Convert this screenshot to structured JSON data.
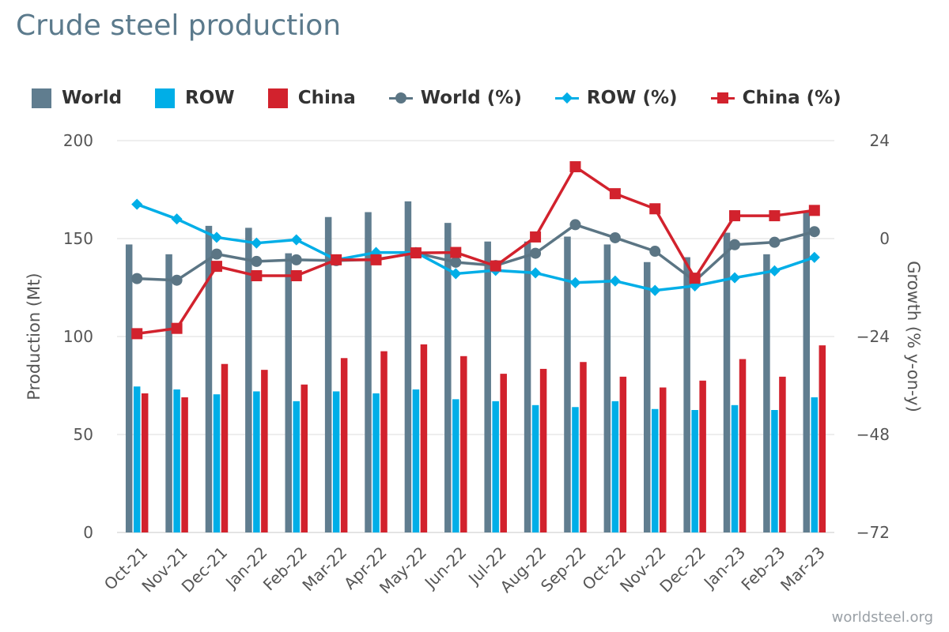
{
  "page": {
    "title": "Crude steel production",
    "watermark": "worldsteel.org"
  },
  "colors": {
    "world": "#607d8f",
    "row": "#00aee7",
    "china": "#d2222d",
    "world_line": "#5b7584",
    "grid": "#dcdcdc"
  },
  "legend": [
    {
      "label": "World",
      "kind": "box",
      "color": "#607d8f"
    },
    {
      "label": "ROW",
      "kind": "box",
      "color": "#00aee7"
    },
    {
      "label": "China",
      "kind": "box",
      "color": "#d2222d"
    },
    {
      "label": "World (%)",
      "kind": "line",
      "marker": "circle",
      "color": "#5b7584"
    },
    {
      "label": "ROW (%)",
      "kind": "line",
      "marker": "diamond",
      "color": "#00aee7"
    },
    {
      "label": "China (%)",
      "kind": "line",
      "marker": "square",
      "color": "#d2222d"
    }
  ],
  "chart_data": {
    "type": "bar",
    "title": "Crude steel production",
    "ylabel": "Production (Mt)",
    "y2label": "Growth (% y-on-y)",
    "ylim": [
      0,
      200
    ],
    "y2lim": [
      -72,
      24
    ],
    "yticks": [
      0,
      50,
      100,
      150,
      200
    ],
    "y2ticks": [
      "−72",
      "−48",
      "−24",
      "0",
      "24"
    ],
    "grid": true,
    "legend_position": "top",
    "categories": [
      "Oct-21",
      "Nov-21",
      "Dec-21",
      "Jan-22",
      "Feb-22",
      "Mar-22",
      "Apr-22",
      "May-22",
      "Jun-22",
      "Jul-22",
      "Aug-22",
      "Sep-22",
      "Oct-22",
      "Nov-22",
      "Dec-22",
      "Jan-23",
      "Feb-23",
      "Mar-23"
    ],
    "series": [
      {
        "name": "World",
        "type": "bar",
        "axis": "left",
        "values": [
          147,
          142,
          156.5,
          155.5,
          142.5,
          161,
          163.5,
          169,
          158,
          148.5,
          148.5,
          151,
          147,
          138,
          140.5,
          153,
          142,
          163.5
        ]
      },
      {
        "name": "ROW",
        "type": "bar",
        "axis": "left",
        "values": [
          74.5,
          73,
          70.5,
          72,
          67,
          72,
          71,
          73,
          68,
          67,
          65,
          64,
          67,
          63,
          62.5,
          65,
          62.5,
          69
        ]
      },
      {
        "name": "China",
        "type": "bar",
        "axis": "left",
        "values": [
          71,
          69,
          86,
          83,
          75.5,
          89,
          92.5,
          96,
          90,
          81,
          83.5,
          87,
          79.5,
          74,
          77.5,
          88.5,
          79.5,
          95.5
        ]
      },
      {
        "name": "World (%)",
        "type": "line",
        "axis": "right",
        "values": [
          -9.8,
          -10.2,
          -3.8,
          -5.6,
          -5.2,
          -5.4,
          -5.1,
          -3.5,
          -5.8,
          -6.6,
          -3.6,
          3.4,
          0.2,
          -3.1,
          -10.4,
          -1.5,
          -0.9,
          1.7
        ]
      },
      {
        "name": "ROW (%)",
        "type": "line",
        "axis": "right",
        "values": [
          8.4,
          4.8,
          0.3,
          -1.1,
          -0.3,
          -5.2,
          -3.4,
          -3.4,
          -8.6,
          -7.8,
          -8.4,
          -10.8,
          -10.4,
          -12.7,
          -11.6,
          -9.6,
          -7.9,
          -4.6
        ]
      },
      {
        "name": "China (%)",
        "type": "line",
        "axis": "right",
        "values": [
          -23.3,
          -22.0,
          -6.8,
          -9.1,
          -9.1,
          -5.2,
          -5.2,
          -3.5,
          -3.4,
          -6.7,
          0.4,
          17.6,
          11.0,
          7.3,
          -9.7,
          5.6,
          5.6,
          6.9
        ]
      }
    ]
  }
}
